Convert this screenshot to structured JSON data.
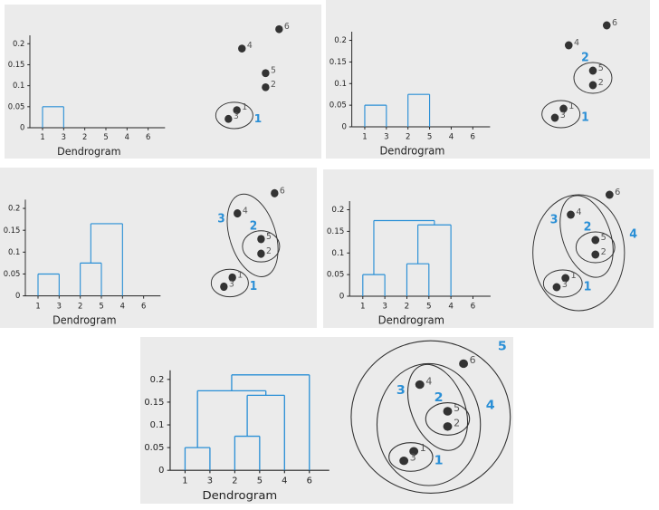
{
  "panels": [
    {
      "x_label": "Dendrogram",
      "ylim": [
        0,
        0.22
      ],
      "yticks": [
        0,
        0.05,
        0.1,
        0.15,
        0.2
      ],
      "leaves": [
        "1",
        "3",
        "2",
        "5",
        "4",
        "6"
      ],
      "points": [
        "1",
        "2",
        "3",
        "4",
        "5",
        "6"
      ],
      "clusters": [
        {
          "label": "1",
          "members": [
            "1",
            "3"
          ],
          "height": 0.05
        }
      ]
    },
    {
      "x_label": "Dendrogram",
      "ylim": [
        0,
        0.22
      ],
      "yticks": [
        0,
        0.05,
        0.1,
        0.15,
        0.2
      ],
      "leaves": [
        "1",
        "3",
        "2",
        "5",
        "4",
        "6"
      ],
      "points": [
        "1",
        "2",
        "3",
        "4",
        "5",
        "6"
      ],
      "clusters": [
        {
          "label": "1",
          "members": [
            "1",
            "3"
          ],
          "height": 0.05
        },
        {
          "label": "2",
          "members": [
            "2",
            "5"
          ],
          "height": 0.075
        }
      ]
    },
    {
      "x_label": "Dendrogram",
      "ylim": [
        0,
        0.22
      ],
      "yticks": [
        0,
        0.05,
        0.1,
        0.15,
        0.2
      ],
      "leaves": [
        "1",
        "3",
        "2",
        "5",
        "4",
        "6"
      ],
      "points": [
        "1",
        "2",
        "3",
        "4",
        "5",
        "6"
      ],
      "clusters": [
        {
          "label": "1",
          "members": [
            "1",
            "3"
          ],
          "height": 0.05
        },
        {
          "label": "2",
          "members": [
            "2",
            "5"
          ],
          "height": 0.075
        },
        {
          "label": "3",
          "members": [
            "2",
            "5",
            "4"
          ],
          "height": 0.165
        }
      ]
    },
    {
      "x_label": "Dendrogram",
      "ylim": [
        0,
        0.22
      ],
      "yticks": [
        0,
        0.05,
        0.1,
        0.15,
        0.2
      ],
      "leaves": [
        "1",
        "3",
        "2",
        "5",
        "4",
        "6"
      ],
      "points": [
        "1",
        "2",
        "3",
        "4",
        "5",
        "6"
      ],
      "clusters": [
        {
          "label": "1",
          "members": [
            "1",
            "3"
          ],
          "height": 0.05
        },
        {
          "label": "2",
          "members": [
            "2",
            "5"
          ],
          "height": 0.075
        },
        {
          "label": "3",
          "members": [
            "2",
            "5",
            "4"
          ],
          "height": 0.165
        },
        {
          "label": "4",
          "members": [
            "1",
            "3",
            "2",
            "5",
            "4"
          ],
          "height": 0.175
        }
      ]
    },
    {
      "x_label": "Dendrogram",
      "ylim": [
        0,
        0.22
      ],
      "yticks": [
        0,
        0.05,
        0.1,
        0.15,
        0.2
      ],
      "leaves": [
        "1",
        "3",
        "2",
        "5",
        "4",
        "6"
      ],
      "points": [
        "1",
        "2",
        "3",
        "4",
        "5",
        "6"
      ],
      "clusters": [
        {
          "label": "1",
          "members": [
            "1",
            "3"
          ],
          "height": 0.05
        },
        {
          "label": "2",
          "members": [
            "2",
            "5"
          ],
          "height": 0.075
        },
        {
          "label": "3",
          "members": [
            "2",
            "5",
            "4"
          ],
          "height": 0.165
        },
        {
          "label": "4",
          "members": [
            "1",
            "3",
            "2",
            "5",
            "4"
          ],
          "height": 0.175
        },
        {
          "label": "5",
          "members": [
            "1",
            "3",
            "2",
            "5",
            "4",
            "6"
          ],
          "height": 0.21
        }
      ]
    }
  ]
}
